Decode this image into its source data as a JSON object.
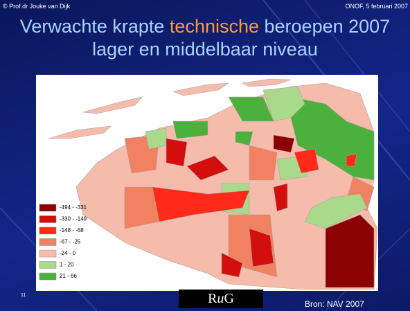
{
  "header": {
    "left": "© Prof.dr Jouke van Dijk",
    "right": "ONOF, 5 februari 2007"
  },
  "title": {
    "before": "Verwachte krapte ",
    "highlight": "technische",
    "after": " beroepen 2007 lager en middelbaar niveau"
  },
  "legend": [
    {
      "label": "-494 - -331",
      "color": "#8b0000"
    },
    {
      "label": "-330 - -149",
      "color": "#d40d0d"
    },
    {
      "label": "-148 - -68",
      "color": "#ff2a1a"
    },
    {
      "label": "-67 - -25",
      "color": "#f08262"
    },
    {
      "label": "-24 - 0",
      "color": "#f6bcab"
    },
    {
      "label": "1 - 20",
      "color": "#a9da8c"
    },
    {
      "label": "21 - 66",
      "color": "#4cb03c"
    }
  ],
  "footer": {
    "page": "11",
    "logo": [
      "R",
      "u",
      "G"
    ],
    "source": "Bron: NAV 2007"
  }
}
